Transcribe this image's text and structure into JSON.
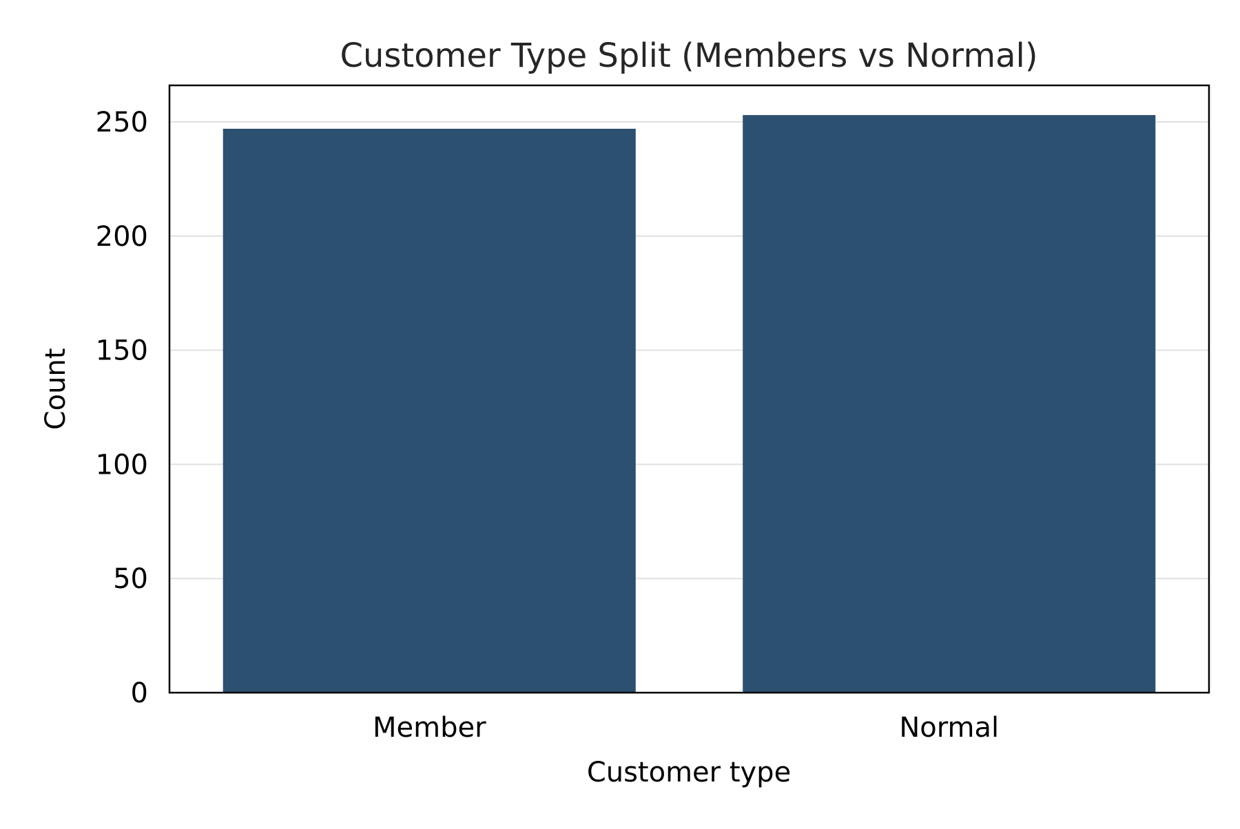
{
  "chart_data": {
    "type": "bar",
    "title": "Customer Type Split (Members vs Normal)",
    "xlabel": "Customer type",
    "ylabel": "Count",
    "categories": [
      "Member",
      "Normal"
    ],
    "values": [
      247,
      253
    ],
    "ylim": [
      0,
      266
    ],
    "yticks": [
      0,
      50,
      100,
      150,
      200,
      250
    ],
    "grid": "horizontal",
    "bar_color": "#2c5070",
    "grid_color": "#e0e0e0"
  }
}
